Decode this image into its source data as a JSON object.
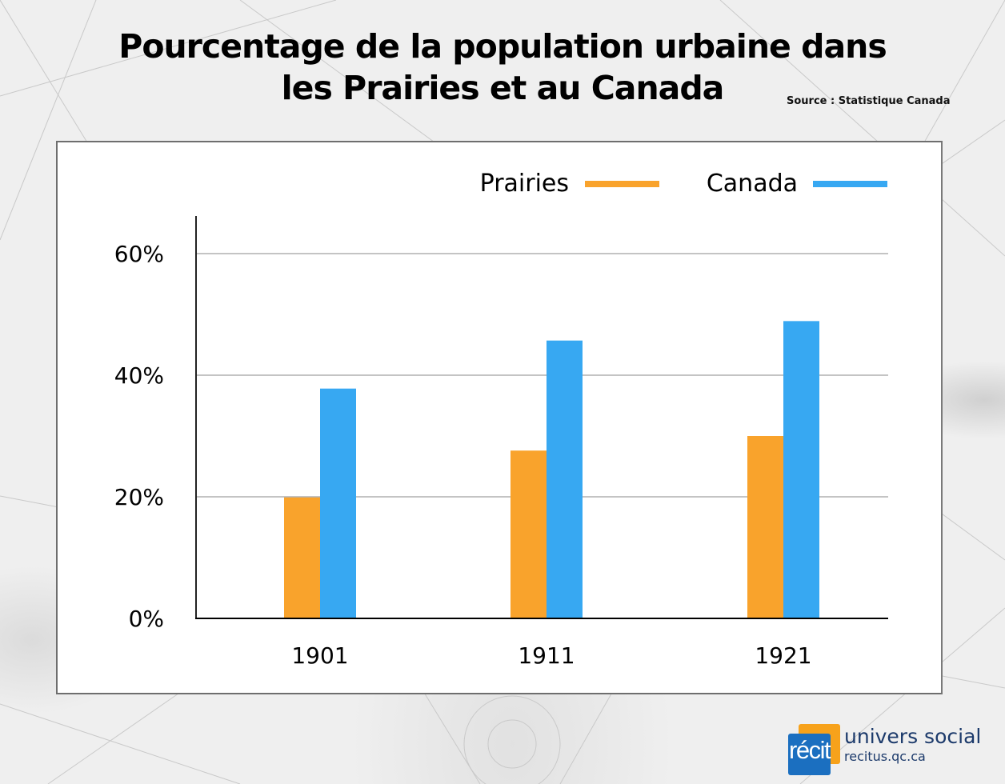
{
  "title_lines": [
    "Pourcentage de la population urbaine dans",
    "les Prairies et au Canada"
  ],
  "source": "Source : Statistique Canada",
  "colors": {
    "prairies": "#f9a32c",
    "canada": "#37a8f2",
    "grid": "#8a8a8a",
    "axis": "#000000"
  },
  "chart_data": {
    "type": "bar",
    "title": "Pourcentage de la population urbaine dans les Prairies et au Canada",
    "xlabel": "",
    "ylabel": "",
    "categories": [
      "1901",
      "1911",
      "1921"
    ],
    "series": [
      {
        "name": "Prairies",
        "values": [
          19.9,
          27.6,
          30.0
        ]
      },
      {
        "name": "Canada",
        "values": [
          37.8,
          45.7,
          48.9
        ]
      }
    ],
    "ylim": [
      0,
      66
    ],
    "yticks": [
      0,
      20,
      40,
      60
    ],
    "ytick_labels": [
      "0%",
      "20%",
      "40%",
      "60%"
    ],
    "grid": true,
    "legend_position": "top-right"
  },
  "logo": {
    "mark_prefix": "réci",
    "mark_suffix": "t",
    "name": "univers social",
    "url": "recitus.qc.ca"
  }
}
